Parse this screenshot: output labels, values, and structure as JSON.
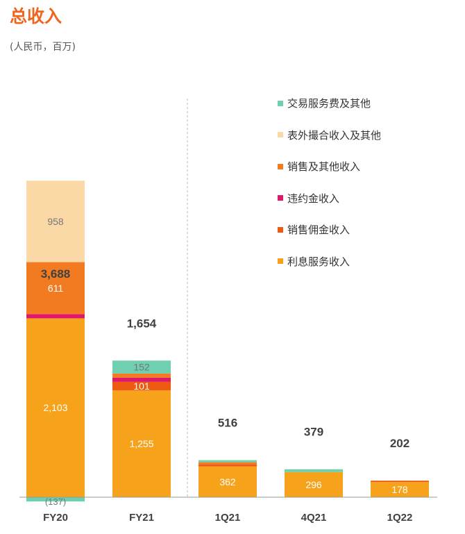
{
  "title": "总收入",
  "subtitle": "(人民币，百万)",
  "colors": {
    "divider": "#bbbbbb",
    "axis": "#999999",
    "total_label": "#404040",
    "x_label": "#404040",
    "value_label": "#ffffff",
    "value_label_dark": "#777777"
  },
  "chart_data": {
    "type": "bar",
    "stacked": true,
    "title": "总收入",
    "subtitle": "(人民币，百万)",
    "categories": [
      "FY20",
      "FY21",
      "1Q21",
      "4Q21",
      "1Q22"
    ],
    "totals": [
      3688,
      1654,
      516,
      379,
      202
    ],
    "total_labels": [
      "3,688",
      "1,654",
      "516",
      "379",
      "202"
    ],
    "series": [
      {
        "name": "利息服务收入",
        "color": "#f6a31b",
        "values": [
          2103,
          1255,
          362,
          296,
          178
        ],
        "labels": [
          "2,103",
          "1,255",
          "362",
          "296",
          "178"
        ]
      },
      {
        "name": "销售佣金收入",
        "color": "#ee5a0f",
        "values": [
          null,
          101,
          null,
          null,
          null
        ],
        "labels": [
          "",
          "101",
          "",
          "",
          ""
        ]
      },
      {
        "name": "违约金收入",
        "color": "#e0186c",
        "values": [
          null,
          null,
          null,
          null,
          null
        ],
        "labels": [
          "",
          "",
          "",
          "",
          ""
        ]
      },
      {
        "name": "销售及其他收入",
        "color": "#f27b21",
        "values": [
          611,
          null,
          null,
          null,
          null
        ],
        "labels": [
          "611",
          "",
          "",
          "",
          ""
        ]
      },
      {
        "name": "表外撮合收入及其他",
        "color": "#fbd9a6",
        "values": [
          958,
          null,
          null,
          null,
          null
        ],
        "labels": [
          "958",
          "",
          "",
          "",
          ""
        ]
      },
      {
        "name": "交易服务费及其他",
        "color": "#6fcfae",
        "values": [
          -137,
          152,
          null,
          null,
          null
        ],
        "labels": [
          "(137)",
          "152",
          "",
          "",
          ""
        ]
      }
    ],
    "legend": {
      "position": "top-right"
    },
    "grid": false
  }
}
